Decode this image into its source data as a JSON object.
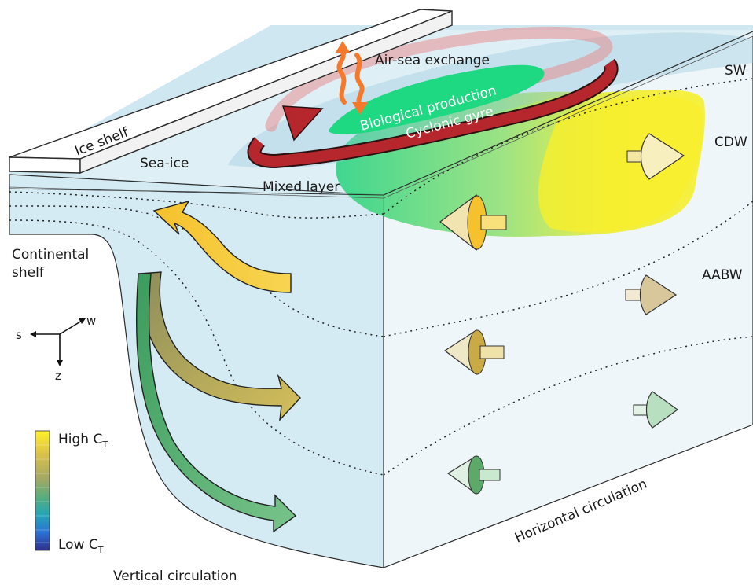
{
  "labels": {
    "ice_shelf": "Ice shelf",
    "sea_ice": "Sea-ice",
    "air_sea_exchange": "Air-sea exchange",
    "biological_production": "Biological production",
    "cyclonic_gyre": "Cyclonic gyre",
    "mixed_layer": "Mixed layer",
    "continental_shelf_line1": "Continental",
    "continental_shelf_line2": "shelf",
    "sw": "SW",
    "cdw": "CDW",
    "aabw": "AABW",
    "horizontal_circulation": "Horizontal circulation",
    "vertical_circulation": "Vertical circulation"
  },
  "axes": {
    "s": "s",
    "w": "w",
    "z": "z"
  },
  "colorbar": {
    "high_label": "High C",
    "low_label": "Low C",
    "subscript": "T",
    "colors": [
      "#fff22a",
      "#e8c93a",
      "#bdb060",
      "#8ea86a",
      "#4fb07e",
      "#2aa2b0",
      "#2c7fd6",
      "#2c3a90"
    ]
  },
  "colors": {
    "water_front": "#d3eaf3",
    "water_side": "#eef6fa",
    "surface": "#cde6f0",
    "gyre": "#b5272c",
    "bio": "#1fd882",
    "cdw_yellow": "#f6ee2a",
    "arrow_orange": "#f6782a",
    "arrow_yellow": "#f5c12c",
    "arrow_olive": "#c9aa45",
    "arrow_green": "#5caa69"
  }
}
